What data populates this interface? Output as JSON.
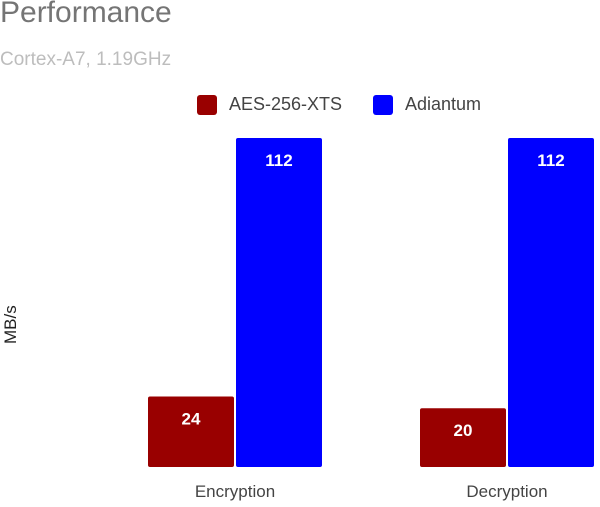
{
  "chart_data": {
    "type": "bar",
    "title": "Performance",
    "subtitle": "Cortex-A7, 1.19GHz",
    "xlabel": "",
    "ylabel": "MB/s",
    "categories": [
      "Encryption",
      "Decryption"
    ],
    "series": [
      {
        "name": "AES-256-XTS",
        "color": "#990000",
        "values": [
          24,
          20
        ]
      },
      {
        "name": "Adiantum",
        "color": "#0000ff",
        "values": [
          112,
          112
        ]
      }
    ],
    "ylim": [
      0,
      113
    ],
    "grid": false,
    "legend_position": "top"
  }
}
